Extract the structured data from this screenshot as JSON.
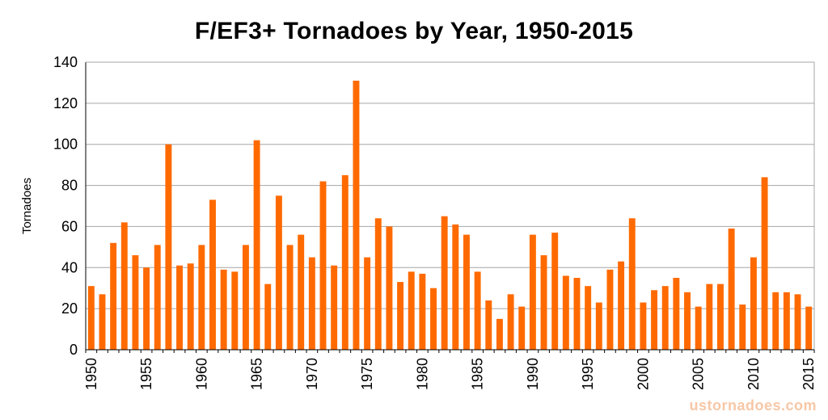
{
  "chart_data": {
    "type": "bar",
    "title": "F/EF3+ Tornadoes by Year, 1950-2015",
    "xlabel": "",
    "ylabel": "Tornadoes",
    "ylim": [
      0,
      140
    ],
    "yticks": [
      0,
      20,
      40,
      60,
      80,
      100,
      120,
      140
    ],
    "xticks": [
      "1950",
      "1955",
      "1960",
      "1965",
      "1970",
      "1975",
      "1980",
      "1985",
      "1990",
      "1995",
      "2000",
      "2005",
      "2010",
      "2015"
    ],
    "grid": true,
    "bar_color": "#ff6a00",
    "categories": [
      "1950",
      "1951",
      "1952",
      "1953",
      "1954",
      "1955",
      "1956",
      "1957",
      "1958",
      "1959",
      "1960",
      "1961",
      "1962",
      "1963",
      "1964",
      "1965",
      "1966",
      "1967",
      "1968",
      "1969",
      "1970",
      "1971",
      "1972",
      "1973",
      "1974",
      "1975",
      "1976",
      "1977",
      "1978",
      "1979",
      "1980",
      "1981",
      "1982",
      "1983",
      "1984",
      "1985",
      "1986",
      "1987",
      "1988",
      "1989",
      "1990",
      "1991",
      "1992",
      "1993",
      "1994",
      "1995",
      "1996",
      "1997",
      "1998",
      "1999",
      "2000",
      "2001",
      "2002",
      "2003",
      "2004",
      "2005",
      "2006",
      "2007",
      "2008",
      "2009",
      "2010",
      "2011",
      "2012",
      "2013",
      "2014",
      "2015"
    ],
    "values": [
      31,
      27,
      52,
      62,
      46,
      40,
      51,
      100,
      41,
      42,
      51,
      73,
      39,
      38,
      51,
      102,
      32,
      75,
      51,
      56,
      45,
      82,
      41,
      85,
      131,
      45,
      64,
      60,
      33,
      38,
      37,
      30,
      65,
      61,
      56,
      38,
      24,
      15,
      27,
      21,
      56,
      46,
      57,
      36,
      35,
      31,
      23,
      39,
      43,
      64,
      23,
      29,
      31,
      35,
      28,
      21,
      32,
      32,
      59,
      22,
      45,
      84,
      28,
      28,
      27,
      21
    ]
  },
  "watermark": "ustornadoes.com"
}
